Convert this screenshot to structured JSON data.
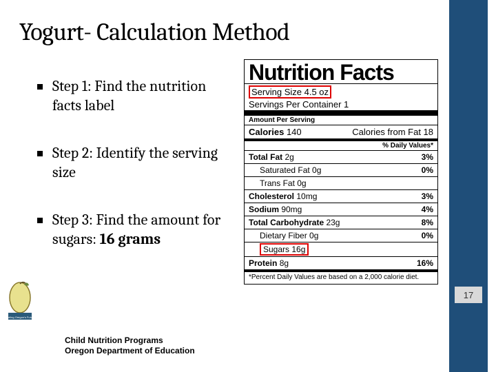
{
  "colors": {
    "sidebar": "#1f4e79",
    "highlight_border": "#d00",
    "pagebox_bg": "#d9d9d9",
    "text": "#000000",
    "background": "#ffffff"
  },
  "title": "Yogurt- Calculation Method",
  "steps": [
    {
      "text": "Step 1: Find the nutrition facts label",
      "bold_suffix": ""
    },
    {
      "text": "Step 2: Identify the serving size",
      "bold_suffix": ""
    },
    {
      "text": "Step 3: Find the amount for sugars: ",
      "bold_suffix": "16 grams"
    }
  ],
  "footer": {
    "line1": "Child Nutrition Programs",
    "line2": "Oregon Department of Education"
  },
  "page_number": "17",
  "nutrition_facts": {
    "heading": "Nutrition Facts",
    "serving_size_label": "Serving Size",
    "serving_size_value": "4.5 oz",
    "servings_per_container": "Servings Per Container 1",
    "amount_per_serving": "Amount Per Serving",
    "calories_label": "Calories",
    "calories_value": "140",
    "calories_from_fat": "Calories from Fat 18",
    "daily_value_header": "% Daily Values*",
    "lines": [
      {
        "name": "Total Fat",
        "amount": "2g",
        "dv": "3%",
        "bold": true,
        "sub": false
      },
      {
        "name": "Saturated Fat",
        "amount": "0g",
        "dv": "0%",
        "bold": false,
        "sub": true
      },
      {
        "name": "Trans Fat",
        "amount": "0g",
        "dv": "",
        "bold": false,
        "sub": true
      },
      {
        "name": "Cholesterol",
        "amount": "10mg",
        "dv": "3%",
        "bold": true,
        "sub": false
      },
      {
        "name": "Sodium",
        "amount": "90mg",
        "dv": "4%",
        "bold": true,
        "sub": false
      },
      {
        "name": "Total Carbohydrate",
        "amount": "23g",
        "dv": "8%",
        "bold": true,
        "sub": false
      },
      {
        "name": "Dietary Fiber",
        "amount": "0g",
        "dv": "0%",
        "bold": false,
        "sub": true
      }
    ],
    "sugars_label": "Sugars",
    "sugars_value": "16g",
    "protein": {
      "name": "Protein",
      "amount": "8g",
      "dv": "16%"
    },
    "footnote": "*Percent Daily Values are based on a 2,000 calorie diet."
  }
}
